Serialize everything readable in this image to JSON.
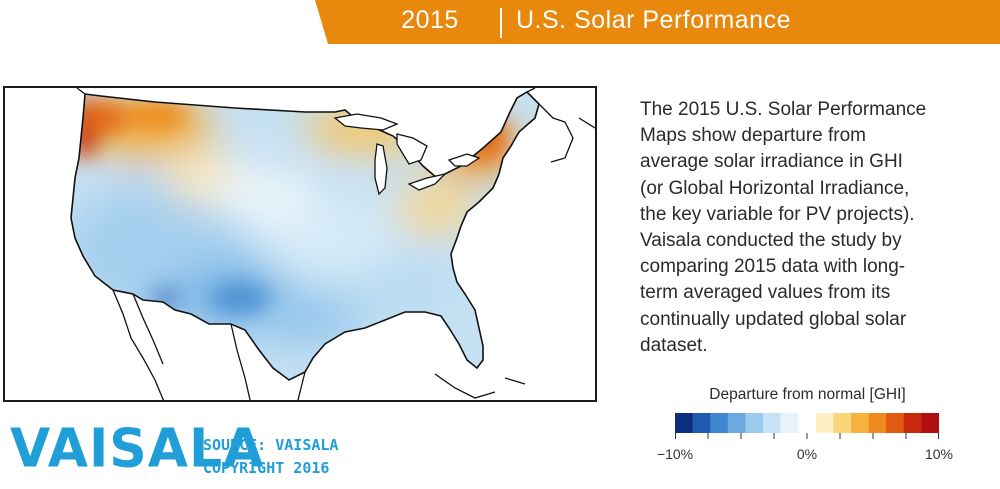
{
  "header": {
    "year": "2015",
    "title": "U.S. Solar Performance",
    "color": "#e8880c"
  },
  "description": {
    "lines": [
      "The 2015 U.S. Solar Performance",
      "Maps show departure from",
      "average solar irradiance in GHI",
      "(or Global Horizontal Irradiance,",
      "the key variable for PV projects).",
      "Vaisala conducted the study by",
      "comparing 2015 data with long-",
      "term averaged values from its",
      "continually updated global solar",
      "dataset."
    ]
  },
  "legend": {
    "title": "Departure from normal [GHI]",
    "ticks": [
      "−10%",
      "0%",
      "10%"
    ],
    "range": [
      -10,
      10
    ],
    "colors": [
      "#0b2f7d",
      "#1f5ab0",
      "#3f86cf",
      "#6aaae0",
      "#9acbec",
      "#c8e3f5",
      "#e6f3fb",
      "#ffffff",
      "#fdf0c4",
      "#fbd57a",
      "#f6b33f",
      "#ee8a1f",
      "#e05a12",
      "#c92a0e",
      "#b00f0f"
    ]
  },
  "branding": {
    "logo": "VAISALA",
    "source_line": "SOURCE: VAISALA",
    "copyright_line": "COPYRIGHT 2016",
    "color": "#1f9ed8"
  },
  "map": {
    "subject": "Contiguous United States, 2015 GHI departure from average",
    "regions": [
      {
        "area": "Pacific Northwest coast",
        "departure_percent": 10
      },
      {
        "area": "Northern Rockies / Montana",
        "departure_percent": 5
      },
      {
        "area": "Northern Plains",
        "departure_percent": -2
      },
      {
        "area": "Upper Midwest / Great Lakes",
        "departure_percent": 4
      },
      {
        "area": "Northeast / New England",
        "departure_percent": 6
      },
      {
        "area": "California",
        "departure_percent": -3
      },
      {
        "area": "Southwest",
        "departure_percent": -5
      },
      {
        "area": "Southern Plains",
        "departure_percent": -6
      },
      {
        "area": "Texas",
        "departure_percent": -5
      },
      {
        "area": "Southeast",
        "departure_percent": -4
      },
      {
        "area": "Florida",
        "departure_percent": -4
      },
      {
        "area": "Mid-Atlantic",
        "departure_percent": 2
      }
    ]
  }
}
